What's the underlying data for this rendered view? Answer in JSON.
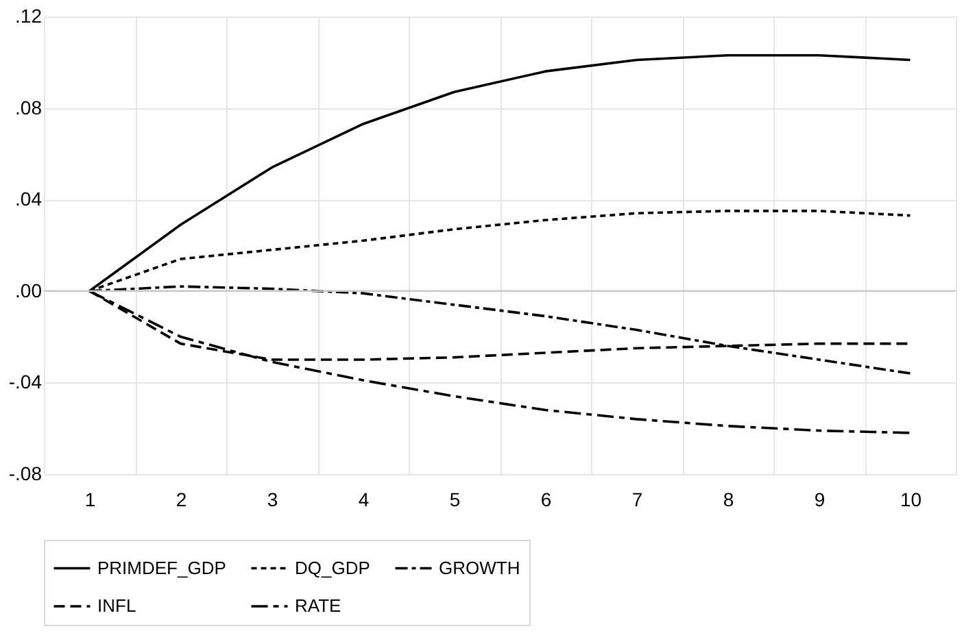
{
  "chart_data": {
    "type": "line",
    "categories": [
      "1",
      "2",
      "3",
      "4",
      "5",
      "6",
      "7",
      "8",
      "9",
      "10"
    ],
    "series": [
      {
        "name": "PRIMDEF_GDP",
        "color": "#000000",
        "line_style": "solid",
        "values": [
          0,
          0.029,
          0.054,
          0.073,
          0.087,
          0.096,
          0.101,
          0.103,
          0.103,
          0.101
        ]
      },
      {
        "name": "DQ_GDP",
        "color": "#000000",
        "line_style": "dotted",
        "values": [
          0,
          0.014,
          0.018,
          0.022,
          0.027,
          0.031,
          0.034,
          0.035,
          0.035,
          0.033
        ]
      },
      {
        "name": "GROWTH",
        "color": "#000000",
        "line_style": "dashdot",
        "values": [
          0,
          0.002,
          0.001,
          -0.001,
          -0.006,
          -0.011,
          -0.017,
          -0.024,
          -0.03,
          -0.036
        ]
      },
      {
        "name": "INFL",
        "color": "#000000",
        "line_style": "dashed",
        "values": [
          0,
          -0.023,
          -0.03,
          -0.03,
          -0.029,
          -0.027,
          -0.025,
          -0.024,
          -0.023,
          -0.023
        ]
      },
      {
        "name": "RATE",
        "color": "#000000",
        "line_style": "longdash",
        "values": [
          0,
          -0.02,
          -0.031,
          -0.039,
          -0.046,
          -0.052,
          -0.056,
          -0.059,
          -0.061,
          -0.062
        ]
      }
    ],
    "ylim": [
      -0.08,
      0.12
    ],
    "yticks": [
      {
        "value": -0.08,
        "label": "-.08"
      },
      {
        "value": -0.04,
        "label": "-.04"
      },
      {
        "value": 0,
        "label": ".00"
      },
      {
        "value": 0.04,
        "label": ".04"
      },
      {
        "value": 0.08,
        "label": ".08"
      },
      {
        "value": 0.12,
        "label": ".12"
      }
    ],
    "grid": true,
    "legend": "bottom",
    "marker": "none"
  }
}
